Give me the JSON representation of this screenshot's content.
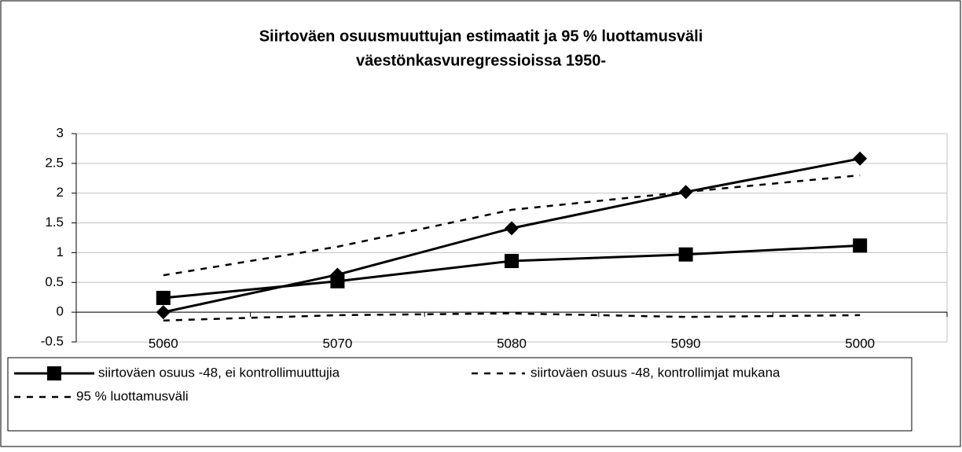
{
  "chart_data": {
    "type": "line",
    "title": [
      "Siirtoväen osuusmuuttujan estimaatit ja 95 % luottamusväli",
      "väestönkasvuregressioissa 1950-"
    ],
    "categories": [
      "5060",
      "5070",
      "5080",
      "5090",
      "5000"
    ],
    "series": [
      {
        "name": "siirtoväen osuus -48, ei kontrollimuuttujia",
        "color": "#000000",
        "marker": "square",
        "dash": false,
        "values": [
          0.24,
          0.52,
          0.86,
          0.97,
          1.12
        ]
      },
      {
        "name": "siirtoväen osuus -48, kontrollimjat mukana",
        "color": "#000000",
        "marker": "diamond",
        "dash": false,
        "legend_dash": true,
        "values": [
          0,
          0.63,
          1.41,
          2.02,
          2.58
        ]
      }
    ],
    "interval": {
      "name": "95 % luottamusväli",
      "color": "#000000",
      "dash": true,
      "upper": [
        0.62,
        1.1,
        1.72,
        2.02,
        2.3
      ],
      "lower": [
        -0.14,
        -0.05,
        -0.02,
        -0.08,
        -0.05
      ]
    },
    "ylim": [
      -0.5,
      3
    ],
    "yticks": [
      -0.5,
      0,
      0.5,
      1,
      1.5,
      2,
      2.5,
      3
    ],
    "grid": true
  }
}
